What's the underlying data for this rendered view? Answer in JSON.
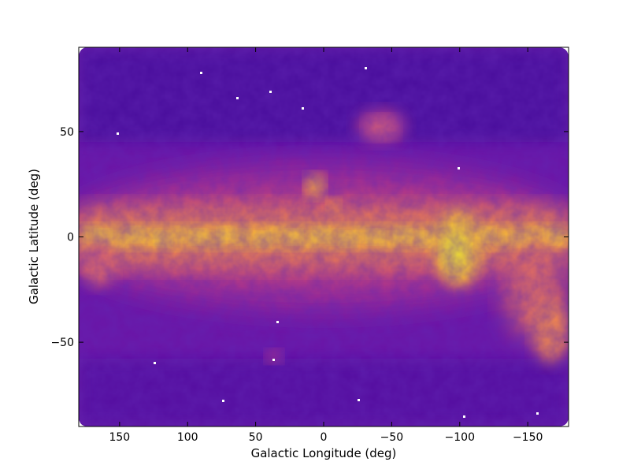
{
  "chart_data": {
    "type": "heatmap",
    "title": "",
    "xlabel": "Galactic Longitude (deg)",
    "ylabel": "Galactic Latitude (deg)",
    "xlim": [
      180,
      -180
    ],
    "ylim": [
      -90,
      90
    ],
    "x_ticks": [
      {
        "value": 150,
        "label": "150"
      },
      {
        "value": 100,
        "label": "100"
      },
      {
        "value": 50,
        "label": "50"
      },
      {
        "value": 0,
        "label": "0"
      },
      {
        "value": -50,
        "label": "−50"
      },
      {
        "value": -100,
        "label": "−100"
      },
      {
        "value": -150,
        "label": "−150"
      }
    ],
    "y_ticks": [
      {
        "value": 50,
        "label": "50"
      },
      {
        "value": 0,
        "label": "0"
      },
      {
        "value": -50,
        "label": "−50"
      }
    ],
    "grid": false,
    "legend": "none",
    "colormap": "plasma",
    "colormap_stops": [
      "#2a0f8a",
      "#5a0aa4",
      "#8c1fa0",
      "#c23d80",
      "#e8685f",
      "#f99a3d",
      "#fdc92c",
      "#f8f020"
    ],
    "features": [
      {
        "name": "galactic-plane",
        "lon_range": [
          180,
          -180
        ],
        "lat": 0,
        "intensity": "high"
      },
      {
        "name": "north-polar-spur-loop",
        "lon": -28,
        "lat": 52,
        "intensity": "medium"
      },
      {
        "name": "rho-ophiuchi-region",
        "lon": 5,
        "lat": 23,
        "intensity": "high"
      },
      {
        "name": "orion-region",
        "lon": -110,
        "lat": -8,
        "intensity": "high"
      },
      {
        "name": "southern-loop",
        "lon": -160,
        "lat": -25,
        "intensity": "medium"
      }
    ]
  }
}
